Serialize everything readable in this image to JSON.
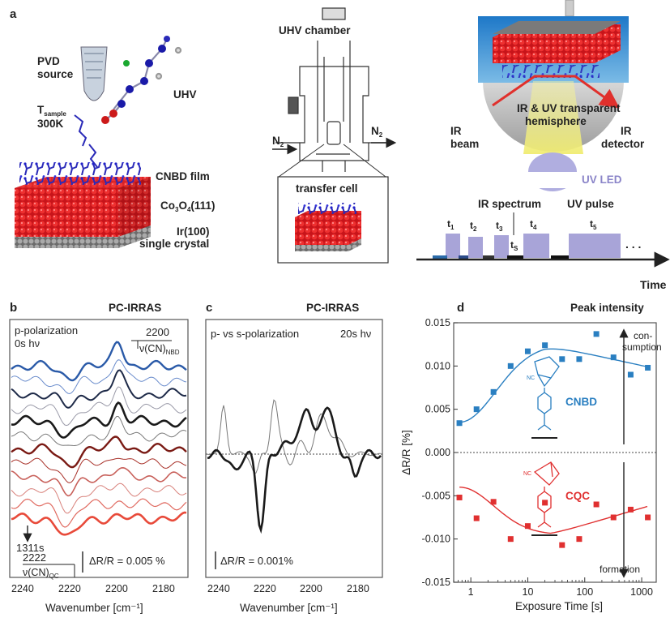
{
  "panel_letters": {
    "a": "a",
    "b": "b",
    "c": "c",
    "d": "d"
  },
  "panel_a": {
    "pvd_source": "PVD\nsource",
    "t_sample": "T",
    "t_sample_sub": "sample",
    "temperature": "300K",
    "uhv": "UHV",
    "cnbd_film": "CNBD film",
    "co3o4_a": "Co",
    "co3o4_b": "3",
    "co3o4_c": "O",
    "co3o4_d": "4",
    "co3o4_e": "(111)",
    "ir100": "Ir(100)",
    "single_crystal": "single crystal",
    "uhv_chamber": "UHV chamber",
    "n2_left": "N",
    "n2_right": "N",
    "n2_sub": "2",
    "transfer_cell": "transfer cell",
    "ir_uv_line1": "IR & UV transparent",
    "ir_uv_line2": "hemisphere",
    "ir_beam_1": "IR",
    "ir_beam_2": "beam",
    "ir_detector_1": "IR",
    "ir_detector_2": "detector",
    "uv_led": "UV LED",
    "ir_spectrum": "IR spectrum",
    "uv_pulse": "UV pulse",
    "t": "t",
    "t_subs": [
      "1",
      "2",
      "3",
      "4",
      "5"
    ],
    "ts_sub": "S",
    "ellipsis": ". . .",
    "time_axis": "Time"
  },
  "panel_b": {
    "method": "PC-IRRAS",
    "polarization": "p-polarization",
    "start_time": "0s hν",
    "end_time": "1311s",
    "nbd_peak": "2200",
    "nbd_label": "ν(CN)",
    "nbd_sub": "NBD",
    "qc_peak": "2222",
    "qc_label": "ν(CN)",
    "qc_sub": "QC",
    "scale": "ΔR/R = 0.005 %",
    "xlabel": "Wavenumber [cm⁻¹]",
    "xticks": [
      "2240",
      "2220",
      "2200",
      "2180"
    ]
  },
  "panel_c": {
    "method": "PC-IRRAS",
    "polarization": "p- vs s-polarization",
    "time": "20s hν",
    "scale": "ΔR/R = 0.001%",
    "xlabel": "Wavenumber [cm⁻¹]",
    "xticks": [
      "2240",
      "2220",
      "2200",
      "2180"
    ]
  },
  "panel_d": {
    "title": "Peak intensity",
    "consumption": "con-\nsumption",
    "formation": "formation",
    "cnbd_label": "CNBD",
    "cqc_label": "CQC",
    "cn_label": "NC"
  },
  "chart_data": [
    {
      "type": "scatter",
      "title": "Peak intensity",
      "xlabel": "Exposure Time [s]",
      "ylabel": "ΔR/R [%]",
      "xscale": "log",
      "xlim": [
        0.5,
        1800
      ],
      "ylim": [
        -0.015,
        0.015
      ],
      "yticks": [
        "0.015",
        "0.010",
        "0.005",
        "0.000",
        "-0.005",
        "-0.010",
        "-0.015"
      ],
      "xticks": [
        "1",
        "10",
        "100",
        "1000"
      ],
      "series": [
        {
          "name": "CNBD",
          "color": "#2a7fc1",
          "x": [
            0.63,
            1.26,
            2.5,
            5,
            10,
            20,
            40,
            80,
            160,
            320,
            640,
            1280
          ],
          "y": [
            0.0034,
            0.005,
            0.007,
            0.01,
            0.0117,
            0.0124,
            0.0108,
            0.0108,
            0.0137,
            0.011,
            0.009,
            0.0098
          ]
        },
        {
          "name": "CQC",
          "color": "#e03030",
          "x": [
            0.63,
            1.26,
            2.5,
            5,
            10,
            20,
            40,
            80,
            160,
            320,
            640,
            1280
          ],
          "y": [
            -0.0052,
            -0.0076,
            -0.0057,
            -0.01,
            -0.0085,
            -0.0058,
            -0.0107,
            -0.01,
            -0.006,
            -0.0075,
            -0.0066,
            -0.0075
          ]
        }
      ]
    }
  ]
}
